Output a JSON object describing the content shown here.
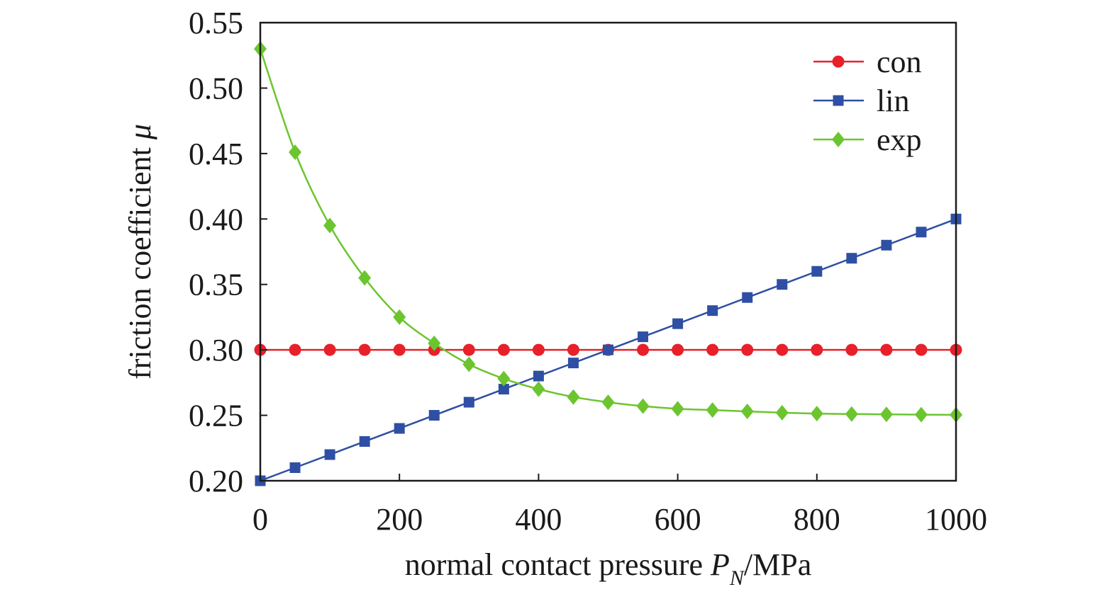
{
  "chart_data": {
    "type": "line",
    "xlabel": "normal contact pressure P_N/MPa",
    "xlabel_main": "normal contact pressure ",
    "xlabel_var": "P",
    "xlabel_sub": "N",
    "xlabel_unit": "/MPa",
    "ylabel": "friction coefficient μ",
    "ylabel_main": "friction coefficient ",
    "ylabel_var": "μ",
    "xlim": [
      0,
      1000
    ],
    "ylim": [
      0.2,
      0.55
    ],
    "xticks": [
      0,
      200,
      400,
      600,
      800,
      1000
    ],
    "xtick_labels": [
      "0",
      "200",
      "400",
      "600",
      "800",
      "1000"
    ],
    "yticks": [
      0.2,
      0.25,
      0.3,
      0.35,
      0.4,
      0.45,
      0.5,
      0.55
    ],
    "ytick_labels": [
      "0.20",
      "0.25",
      "0.30",
      "0.35",
      "0.40",
      "0.45",
      "0.50",
      "0.55"
    ],
    "grid": false,
    "legend_position": "top-right",
    "x": [
      0,
      50,
      100,
      150,
      200,
      250,
      300,
      350,
      400,
      450,
      500,
      550,
      600,
      650,
      700,
      750,
      800,
      850,
      900,
      950,
      1000
    ],
    "series": [
      {
        "name": "con",
        "color": "#e8202a",
        "marker": "circle",
        "values": [
          0.3,
          0.3,
          0.3,
          0.3,
          0.3,
          0.3,
          0.3,
          0.3,
          0.3,
          0.3,
          0.3,
          0.3,
          0.3,
          0.3,
          0.3,
          0.3,
          0.3,
          0.3,
          0.3,
          0.3,
          0.3
        ]
      },
      {
        "name": "lin",
        "color": "#2e4fa3",
        "marker": "square",
        "values": [
          0.2,
          0.21,
          0.22,
          0.23,
          0.24,
          0.25,
          0.26,
          0.27,
          0.28,
          0.29,
          0.3,
          0.31,
          0.32,
          0.33,
          0.34,
          0.35,
          0.36,
          0.37,
          0.38,
          0.39,
          0.4
        ]
      },
      {
        "name": "exp",
        "color": "#6cc52f",
        "marker": "diamond",
        "values": [
          0.53,
          0.451,
          0.395,
          0.355,
          0.325,
          0.305,
          0.289,
          0.278,
          0.27,
          0.264,
          0.26,
          0.257,
          0.255,
          0.254,
          0.253,
          0.252,
          0.2513,
          0.251,
          0.2507,
          0.2505,
          0.2504
        ]
      }
    ]
  }
}
